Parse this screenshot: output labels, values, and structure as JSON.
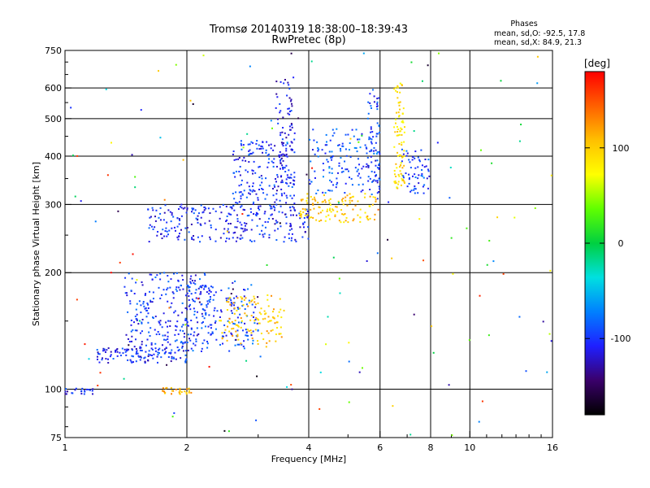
{
  "chart_data": {
    "type": "scatter",
    "title": "Tromsø 20140319 18:38:00–18:39:43",
    "subtitle": "RwPretec (8p)",
    "xlabel": "Frequency [MHz]",
    "ylabel": "Stationary phase Virtual Height [km]",
    "x_scale": "log",
    "y_scale": "log",
    "xlim": [
      1,
      16
    ],
    "ylim": [
      75,
      750
    ],
    "x_ticks": [
      1,
      2,
      4,
      6,
      8,
      10,
      16
    ],
    "y_ticks": [
      75,
      100,
      200,
      300,
      400,
      500,
      600,
      750
    ],
    "x_gridlines": [
      2,
      4,
      6,
      8,
      10
    ],
    "y_gridlines": [
      100,
      200,
      300,
      400,
      500,
      600
    ],
    "grid": true,
    "stats_box": {
      "title": "Phases",
      "line1": "mean, sd,O: -92.5, 17.8",
      "line2": "mean, sd,X:  84.9, 21.3"
    },
    "colorbar": {
      "label": "[deg]",
      "range": [
        -180,
        180
      ],
      "ticks": [
        100,
        0,
        -100
      ],
      "colormap": [
        "#000000",
        "#3a006a",
        "#1f1fff",
        "#0080ff",
        "#00e0e0",
        "#00d040",
        "#60ff00",
        "#ffff00",
        "#ffc000",
        "#ff6000",
        "#ff0000"
      ]
    },
    "series": [
      {
        "x_range": [
          1.0,
          1.18
        ],
        "y_range": [
          97,
          101
        ],
        "phase": -110,
        "count": 22
      },
      {
        "x_range": [
          1.2,
          2.0
        ],
        "y_range": [
          117,
          128
        ],
        "phase": -105,
        "count": 110
      },
      {
        "x_range": [
          1.4,
          2.3
        ],
        "y_range": [
          125,
          200
        ],
        "phase": -100,
        "count": 260
      },
      {
        "x_range": [
          2.0,
          3.0
        ],
        "y_range": [
          125,
          190
        ],
        "phase": -95,
        "count": 150
      },
      {
        "x_range": [
          2.4,
          3.5
        ],
        "y_range": [
          130,
          175
        ],
        "phase": 105,
        "count": 120
      },
      {
        "x_range": [
          1.7,
          2.05
        ],
        "y_range": [
          97,
          101
        ],
        "phase": 110,
        "count": 28
      },
      {
        "x_range": [
          1.6,
          4.0
        ],
        "y_range": [
          240,
          300
        ],
        "phase": -105,
        "count": 260
      },
      {
        "x_range": [
          2.6,
          3.7
        ],
        "y_range": [
          290,
          440
        ],
        "phase": -100,
        "count": 180
      },
      {
        "x_range": [
          3.3,
          3.7
        ],
        "y_range": [
          310,
          650
        ],
        "phase": -110,
        "count": 90
      },
      {
        "x_range": [
          3.8,
          5.9
        ],
        "y_range": [
          270,
          320
        ],
        "phase": 100,
        "count": 120
      },
      {
        "x_range": [
          4.0,
          6.0
        ],
        "y_range": [
          320,
          470
        ],
        "phase": -90,
        "count": 140
      },
      {
        "x_range": [
          5.6,
          6.0
        ],
        "y_range": [
          300,
          600
        ],
        "phase": -100,
        "count": 60
      },
      {
        "x_range": [
          6.5,
          6.9
        ],
        "y_range": [
          330,
          620
        ],
        "phase": 90,
        "count": 90
      },
      {
        "x_range": [
          6.8,
          8.0
        ],
        "y_range": [
          320,
          420
        ],
        "phase": -95,
        "count": 60
      },
      {
        "x_range": [
          1.0,
          16.0
        ],
        "y_range": [
          75,
          750
        ],
        "phase": 0,
        "count": 150
      }
    ]
  }
}
